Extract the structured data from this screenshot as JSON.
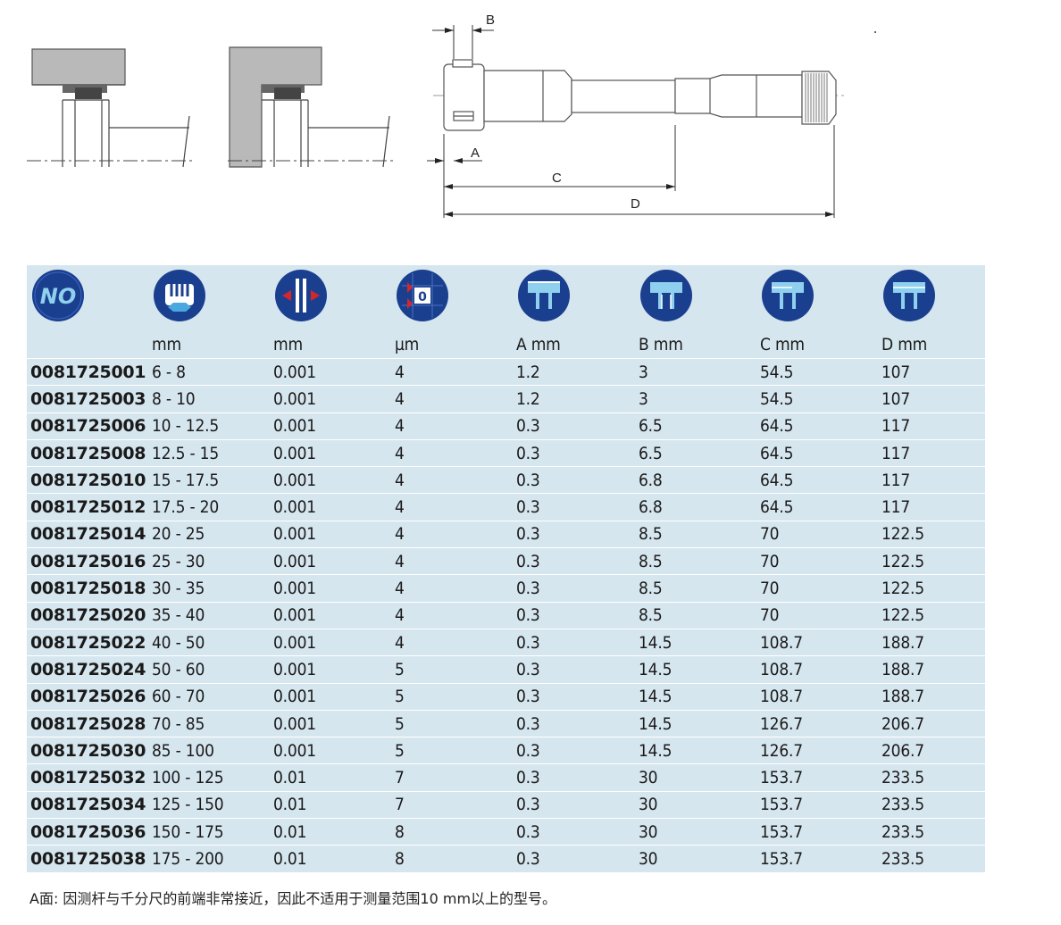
{
  "diagram": {
    "dim_labels": [
      "B",
      "A",
      "C",
      "D"
    ]
  },
  "table": {
    "icons": [
      "no-badge-icon",
      "measuring-range-icon",
      "resolution-icon",
      "accuracy-icon",
      "dimension-a-icon",
      "dimension-b-icon",
      "dimension-c-icon",
      "dimension-d-icon"
    ],
    "no_label": "NO",
    "units": [
      "",
      "mm",
      "mm",
      "µm",
      "A mm",
      "B mm",
      "C mm",
      "D mm"
    ],
    "rows": [
      [
        "0081725001",
        "6 - 8",
        "0.001",
        "4",
        "1.2",
        "3",
        "54.5",
        "107"
      ],
      [
        "0081725003",
        "8 - 10",
        "0.001",
        "4",
        "1.2",
        "3",
        "54.5",
        "107"
      ],
      [
        "0081725006",
        "10 - 12.5",
        "0.001",
        "4",
        "0.3",
        "6.5",
        "64.5",
        "117"
      ],
      [
        "0081725008",
        "12.5 - 15",
        "0.001",
        "4",
        "0.3",
        "6.5",
        "64.5",
        "117"
      ],
      [
        "0081725010",
        "15 - 17.5",
        "0.001",
        "4",
        "0.3",
        "6.8",
        "64.5",
        "117"
      ],
      [
        "0081725012",
        "17.5 - 20",
        "0.001",
        "4",
        "0.3",
        "6.8",
        "64.5",
        "117"
      ],
      [
        "0081725014",
        "20 - 25",
        "0.001",
        "4",
        "0.3",
        "8.5",
        "70",
        "122.5"
      ],
      [
        "0081725016",
        "25 - 30",
        "0.001",
        "4",
        "0.3",
        "8.5",
        "70",
        "122.5"
      ],
      [
        "0081725018",
        "30 - 35",
        "0.001",
        "4",
        "0.3",
        "8.5",
        "70",
        "122.5"
      ],
      [
        "0081725020",
        "35 - 40",
        "0.001",
        "4",
        "0.3",
        "8.5",
        "70",
        "122.5"
      ],
      [
        "0081725022",
        "40 - 50",
        "0.001",
        "4",
        "0.3",
        "14.5",
        "108.7",
        "188.7"
      ],
      [
        "0081725024",
        "50 - 60",
        "0.001",
        "5",
        "0.3",
        "14.5",
        "108.7",
        "188.7"
      ],
      [
        "0081725026",
        "60 - 70",
        "0.001",
        "5",
        "0.3",
        "14.5",
        "108.7",
        "188.7"
      ],
      [
        "0081725028",
        "70 - 85",
        "0.001",
        "5",
        "0.3",
        "14.5",
        "126.7",
        "206.7"
      ],
      [
        "0081725030",
        "85 - 100",
        "0.001",
        "5",
        "0.3",
        "14.5",
        "126.7",
        "206.7"
      ],
      [
        "0081725032",
        "100 - 125",
        "0.01",
        "7",
        "0.3",
        "30",
        "153.7",
        "233.5"
      ],
      [
        "0081725034",
        "125 - 150",
        "0.01",
        "7",
        "0.3",
        "30",
        "153.7",
        "233.5"
      ],
      [
        "0081725036",
        "150 - 175",
        "0.01",
        "8",
        "0.3",
        "30",
        "153.7",
        "233.5"
      ],
      [
        "0081725038",
        "175 - 200",
        "0.01",
        "8",
        "0.3",
        "30",
        "153.7",
        "233.5"
      ]
    ]
  },
  "footnote": "A面: 因测杆与千分尺的前端非常接近，因此不适用于测量范围10 mm以上的型号。",
  "colors": {
    "table_bg": "#d6e6ef",
    "icon_blue": "#1b3f8f",
    "icon_light": "#8fd0ee",
    "accent_red": "#d6262b"
  }
}
